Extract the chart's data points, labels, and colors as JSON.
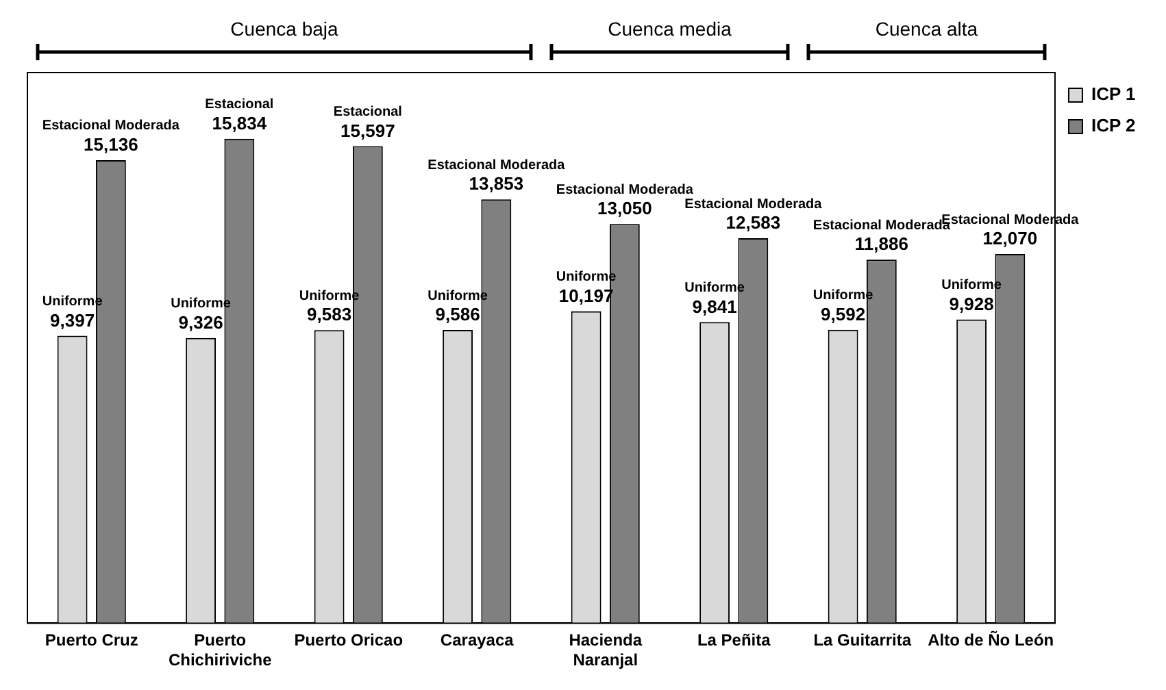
{
  "chart_data": {
    "type": "bar",
    "categories": [
      "Puerto Cruz",
      "Puerto Chichiriviche",
      "Puerto Oricao",
      "Carayaca",
      "Hacienda Naranjal",
      "La Peñita",
      "La Guitarrita",
      "Alto de Ño León"
    ],
    "series": [
      {
        "name": "ICP 1",
        "color": "#d9d9d9",
        "values": [
          9397,
          9326,
          9583,
          9586,
          10197,
          9841,
          9592,
          9928
        ],
        "value_labels": [
          "9,397",
          "9,326",
          "9,583",
          "9,586",
          "10,197",
          "9,841",
          "9,592",
          "9,928"
        ]
      },
      {
        "name": "ICP 2",
        "color": "#808080",
        "values": [
          15136,
          15834,
          15597,
          13853,
          13050,
          12583,
          11886,
          12070
        ],
        "value_labels": [
          "15,136",
          "15,834",
          "15,597",
          "13,853",
          "13,050",
          "12,583",
          "11,886",
          "12,070"
        ]
      }
    ],
    "tick_labels": "x",
    "grid": false,
    "legend": "top right",
    "annotations": [
      "Cuenca baja",
      "Cuenca media",
      "Cuenca alta",
      {
        "text": "Uniforme",
        "x": "Puerto Cruz",
        "y": 9397
      },
      {
        "text": "Estacional Moderada",
        "x": "Puerto Cruz",
        "y": 15136
      },
      {
        "text": "Uniforme",
        "x": "Puerto Chichiriviche",
        "y": 9326
      },
      {
        "text": "Estacional",
        "x": "Puerto Chichiriviche",
        "y": 15834
      },
      {
        "text": "Uniforme",
        "x": "Puerto Oricao",
        "y": 9583
      },
      {
        "text": "Estacional",
        "x": "Puerto Oricao",
        "y": 15597
      },
      {
        "text": "Uniforme",
        "x": "Carayaca",
        "y": 9586
      },
      {
        "text": "Estacional Moderada",
        "x": "Carayaca",
        "y": 13853
      },
      {
        "text": "Uniforme",
        "x": "Hacienda Naranjal",
        "y": 10197
      },
      {
        "text": "Estacional Moderada",
        "x": "Hacienda Naranjal",
        "y": 13050
      },
      {
        "text": "Uniforme",
        "x": "La Peñita",
        "y": 9841
      },
      {
        "text": "Estacional Moderada",
        "x": "La Peñita",
        "y": 12583
      },
      {
        "text": "Uniforme",
        "x": "La Guitarrita",
        "y": 9592
      },
      {
        "text": "Estacional Moderada",
        "x": "La Guitarrita",
        "y": 11886
      },
      {
        "text": "Uniforme",
        "x": "Alto de Ño León",
        "y": 9928
      },
      {
        "text": "Estacional Moderada",
        "x": "Alto de Ño León",
        "y": 12070
      }
    ]
  }
}
